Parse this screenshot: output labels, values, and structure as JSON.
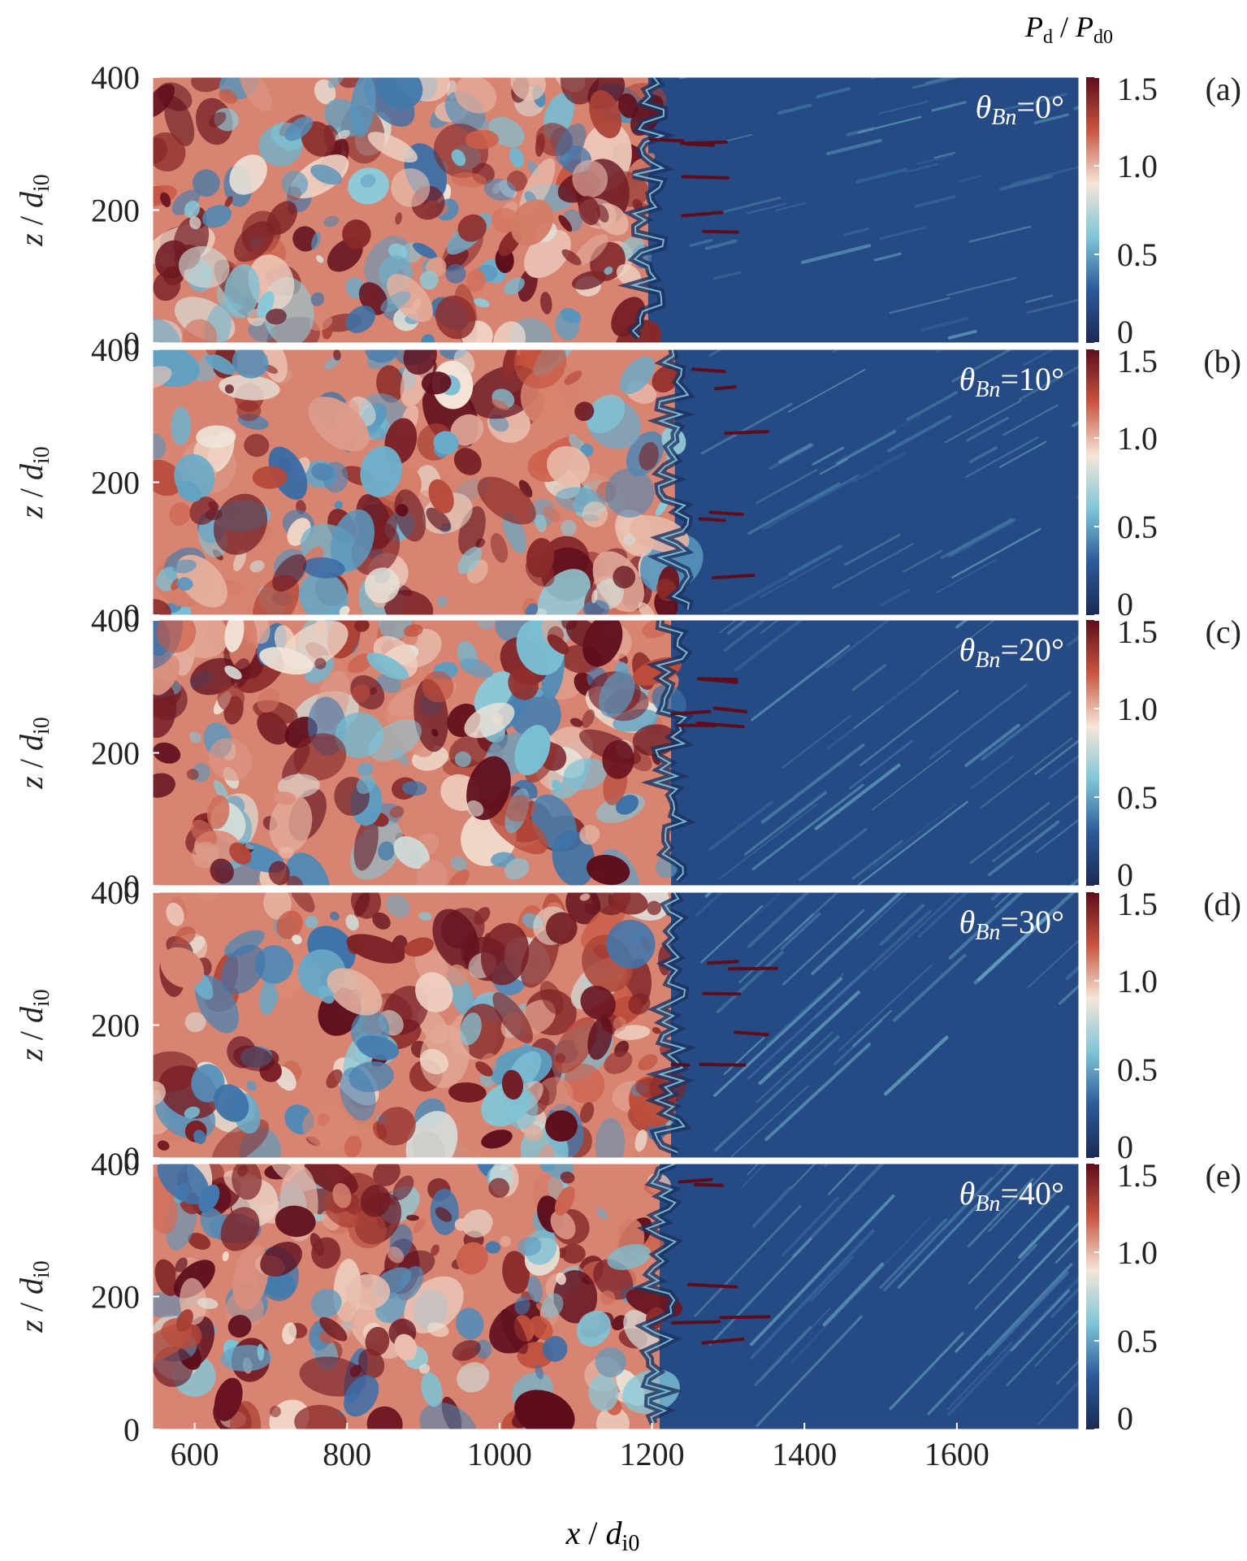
{
  "chart_data": {
    "type": "heatmap",
    "colorbar": {
      "label_main": "P",
      "label_sub": "d",
      "label_sep": " / ",
      "label_main2": "P",
      "label_sub2": "d0",
      "range": [
        0,
        1.5
      ],
      "ticks": [
        0,
        0.5,
        1.0,
        1.5
      ],
      "tick_labels": [
        "0",
        "0.5",
        "1.0",
        "1.5"
      ],
      "colors": [
        "#1b2a55",
        "#2b5a9a",
        "#7fc6d8",
        "#f6e6d8",
        "#c8553f",
        "#5e0d1c"
      ]
    },
    "x_axis": {
      "label_main": "x",
      "label_sep": " / ",
      "label_var": "d",
      "label_sub": "i0",
      "range": [
        545,
        1760
      ],
      "ticks": [
        600,
        800,
        1000,
        1200,
        1400,
        1600
      ],
      "tick_labels": [
        "600",
        "800",
        "1000",
        "1200",
        "1400",
        "1600"
      ]
    },
    "y_axis": {
      "label_main": "z",
      "label_sep": " / ",
      "label_var": "d",
      "label_sub": "i0",
      "range": [
        0,
        400
      ],
      "ticks": [
        0,
        200,
        400
      ],
      "tick_labels": [
        "0",
        "200",
        "400"
      ]
    },
    "panels": [
      {
        "id": "(a)",
        "theta_label": "θ",
        "theta_sub": "Bn",
        "theta_value": "=0°",
        "shock_x": 1195
      },
      {
        "id": "(b)",
        "theta_label": "θ",
        "theta_sub": "Bn",
        "theta_value": "=10°",
        "shock_x": 1230
      },
      {
        "id": "(c)",
        "theta_label": "θ",
        "theta_sub": "Bn",
        "theta_value": "=20°",
        "shock_x": 1225
      },
      {
        "id": "(d)",
        "theta_label": "θ",
        "theta_sub": "Bn",
        "theta_value": "=30°",
        "shock_x": 1225
      },
      {
        "id": "(e)",
        "theta_label": "θ",
        "theta_sub": "Bn",
        "theta_value": "=40°",
        "shock_x": 1210
      }
    ],
    "field": {
      "downstream_mean": 1.1,
      "upstream_mean": 0.2
    }
  }
}
